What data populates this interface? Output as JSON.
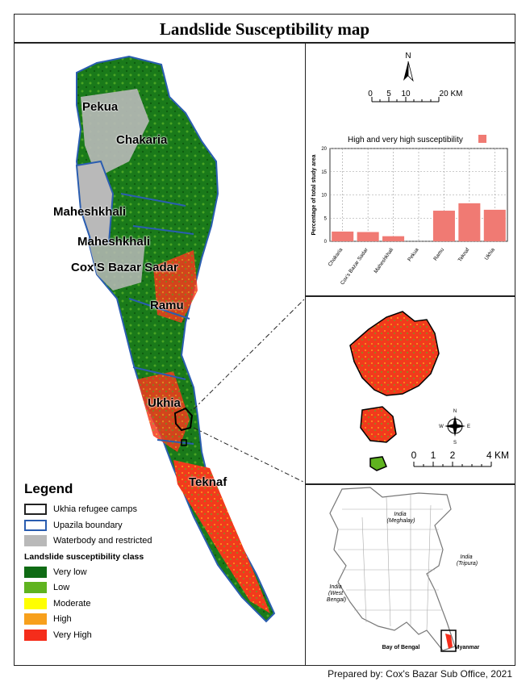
{
  "title": "Landslide Susceptibility map",
  "credit": "Prepared by: Cox's Bazar Sub Office, 2021",
  "places": {
    "pekua": "Pekua",
    "chakaria": "Chakaria",
    "maheshkhali_west": "Maheshkhali",
    "maheshkhali_east": "Maheshkhali",
    "coxs_bazar_sadar": "Cox'S Bazar Sadar",
    "ramu": "Ramu",
    "ukhia": "Ukhia",
    "teknaf": "Teknaf"
  },
  "legend": {
    "title": "Legend",
    "items": [
      {
        "label": "Ukhia refugee camps",
        "color": "#ffffff",
        "border": "#222222"
      },
      {
        "label": "Upazila boundary",
        "color": "#ffffff",
        "border": "#2a5db0"
      },
      {
        "label": "Waterbody and restricted",
        "color": "#b9b9b9",
        "border": "#b9b9b9"
      }
    ],
    "subtitle": "Landslide susceptibility class",
    "classes": [
      {
        "label": "Very low",
        "color": "#0f6b14"
      },
      {
        "label": "Low",
        "color": "#5fb31f"
      },
      {
        "label": "Moderate",
        "color": "#ffff00"
      },
      {
        "label": "High",
        "color": "#f7a01c"
      },
      {
        "label": "Very High",
        "color": "#f52d1b"
      }
    ]
  },
  "scale_main": {
    "unit_label": "20 KM",
    "ticks": [
      "0",
      "5",
      "10"
    ],
    "north": "N"
  },
  "scale_zoom": {
    "ticks": [
      "0",
      "1",
      "2"
    ],
    "end_label": "4 KM"
  },
  "compass": {
    "n": "N",
    "s": "S",
    "e": "E",
    "w": "W"
  },
  "chart_data": {
    "type": "bar",
    "title": "High and very high susceptibility",
    "ylabel": "Percentage of total study area",
    "xlabel": "",
    "categories": [
      "Chakaria",
      "Cox's Bazar Sadar",
      "Maheshkhali",
      "Pekua",
      "Ramu",
      "Teknaf",
      "Ukhia"
    ],
    "values": [
      2.1,
      2.0,
      1.1,
      0.0,
      6.6,
      8.2,
      6.8
    ],
    "ylim": [
      0,
      20
    ],
    "yticks": [
      "0",
      "5",
      "10",
      "15",
      "20"
    ],
    "grid": true,
    "bar_color": "#f07a73"
  },
  "locator": {
    "labels": [
      {
        "text": "India\n(Meghalay)"
      },
      {
        "text": "India\n(Tripura)"
      },
      {
        "text": "India\n(West\nBengal)"
      },
      {
        "text": "Bay of Bengal"
      },
      {
        "text": "Myanmar"
      }
    ]
  }
}
